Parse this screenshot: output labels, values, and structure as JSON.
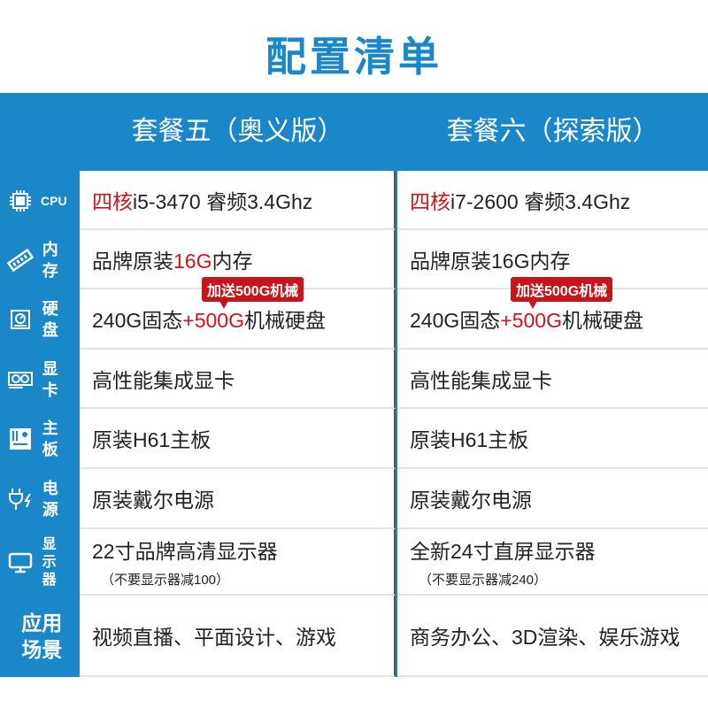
{
  "title": "配置清单",
  "columns": [
    "套餐五（奥义版）",
    "套餐六（探索版）"
  ],
  "rows": [
    {
      "label": "CPU",
      "icon": "cpu-icon",
      "c1": {
        "red": "四核",
        "text": "i5-3470 睿频3.4Ghz"
      },
      "c2": {
        "red": "四核",
        "text": "i7-2600 睿频3.4Ghz"
      }
    },
    {
      "label": "内存",
      "icon": "ram-icon",
      "c1": {
        "pre": "品牌原装",
        "red": "16G",
        "post": "内存"
      },
      "c2": {
        "text": "品牌原装16G内存"
      }
    },
    {
      "label": "硬盘",
      "icon": "hard-disk-icon",
      "tag": "加送500G机械",
      "c1": {
        "pre": "240G固态",
        "red": "+500G",
        "post": "机械硬盘"
      },
      "c2": {
        "pre": "240G固态",
        "red": "+500G",
        "post": "机械硬盘"
      }
    },
    {
      "label": "显卡",
      "icon": "graphics-card-icon",
      "c1": {
        "text": "高性能集成显卡"
      },
      "c2": {
        "text": "高性能集成显卡"
      }
    },
    {
      "label": "主板",
      "icon": "motherboard-icon",
      "c1": {
        "text": "原装H61主板"
      },
      "c2": {
        "text": "原装H61主板"
      }
    },
    {
      "label": "电源",
      "icon": "power-plug-icon",
      "c1": {
        "text": "原装戴尔电源"
      },
      "c2": {
        "text": "原装戴尔电源"
      }
    },
    {
      "label": "显示器",
      "icon": "monitor-icon",
      "c1": {
        "text": "22寸品牌高清显示器",
        "sub": "（不要显示器减100）"
      },
      "c2": {
        "text": "全新24寸直屏显示器",
        "sub": "（不要显示器减240）"
      }
    },
    {
      "label": "应用场景",
      "c1": {
        "text": "视频直播、平面设计、游戏"
      },
      "c2": {
        "text": "商务办公、3D渲染、娱乐游戏"
      }
    }
  ],
  "colors": {
    "accent": "#1a87c9",
    "highlight": "#d4121b"
  }
}
